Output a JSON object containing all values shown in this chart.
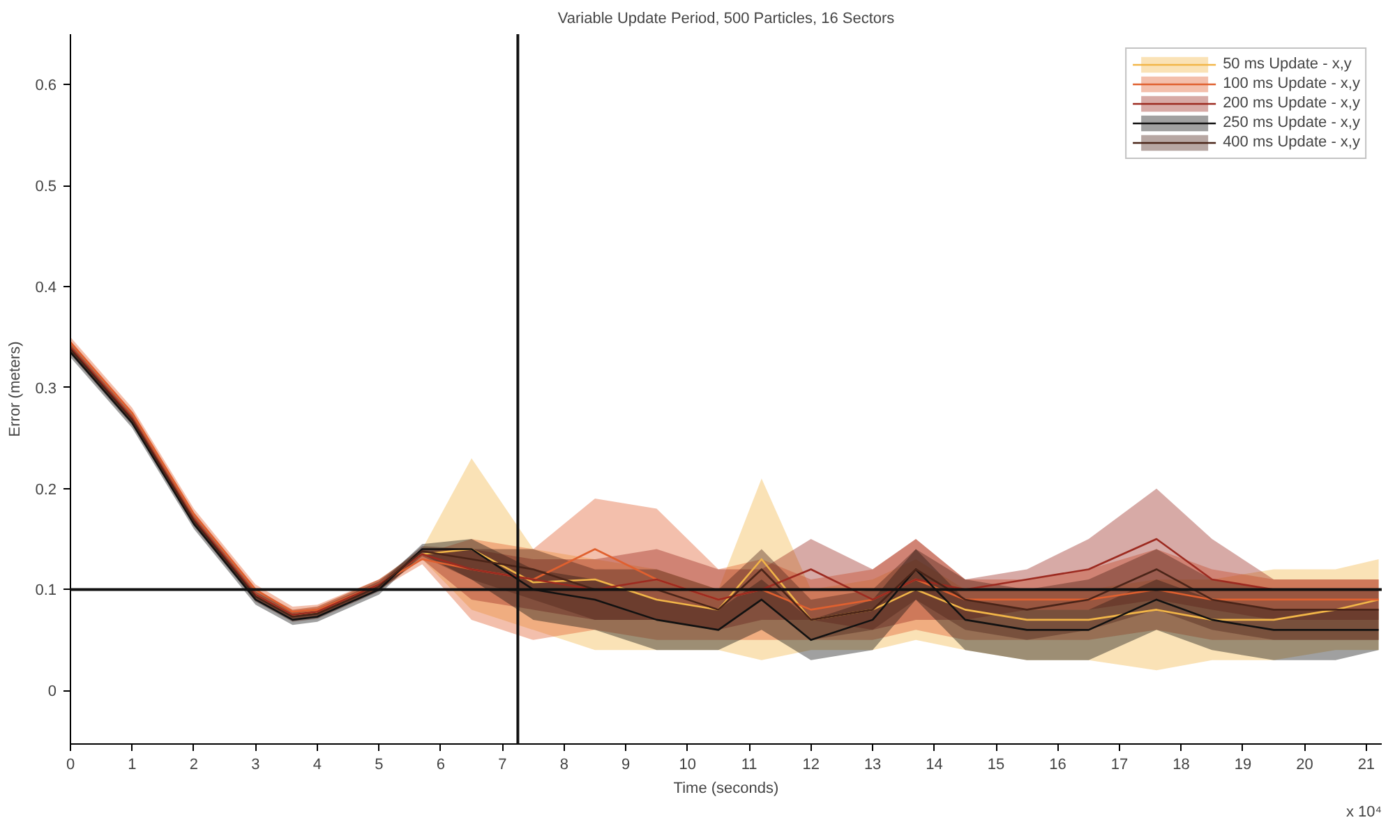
{
  "chart_data": {
    "type": "line",
    "title": "Variable Update Period, 500 Particles, 16 Sectors",
    "xlabel": "Time (seconds)",
    "ylabel": "Error (meters)",
    "x": [
      0,
      1,
      2,
      3,
      3.6,
      4,
      5,
      5.7,
      6.5,
      7.5,
      8.5,
      9.5,
      10.5,
      11.2,
      12,
      13,
      13.7,
      14.5,
      15.5,
      16.5,
      17.6,
      18.5,
      19.5,
      20.5,
      21.2
    ],
    "series": [
      {
        "name": "50 ms Update - x,y",
        "color": "#f2b648",
        "values": [
          0.34,
          0.27,
          0.17,
          0.095,
          0.075,
          0.078,
          0.105,
          0.135,
          0.14,
          0.107,
          0.11,
          0.09,
          0.08,
          0.13,
          0.07,
          0.08,
          0.1,
          0.08,
          0.07,
          0.07,
          0.08,
          0.07,
          0.07,
          0.08,
          0.09
        ],
        "lower": [
          0.335,
          0.265,
          0.165,
          0.09,
          0.07,
          0.073,
          0.1,
          0.13,
          0.08,
          0.06,
          0.04,
          0.04,
          0.04,
          0.03,
          0.04,
          0.04,
          0.05,
          0.04,
          0.03,
          0.03,
          0.02,
          0.03,
          0.03,
          0.04,
          0.04
        ],
        "upper": [
          0.345,
          0.275,
          0.175,
          0.1,
          0.08,
          0.083,
          0.11,
          0.14,
          0.23,
          0.14,
          0.13,
          0.12,
          0.1,
          0.21,
          0.1,
          0.11,
          0.13,
          0.1,
          0.1,
          0.1,
          0.11,
          0.11,
          0.12,
          0.12,
          0.13
        ]
      },
      {
        "name": "100 ms Update - x,y",
        "color": "#e0602f",
        "values": [
          0.345,
          0.275,
          0.175,
          0.1,
          0.078,
          0.08,
          0.105,
          0.13,
          0.12,
          0.11,
          0.14,
          0.11,
          0.09,
          0.1,
          0.08,
          0.09,
          0.11,
          0.09,
          0.09,
          0.09,
          0.1,
          0.09,
          0.09,
          0.09,
          0.09
        ],
        "lower": [
          0.34,
          0.27,
          0.17,
          0.095,
          0.073,
          0.075,
          0.1,
          0.125,
          0.07,
          0.05,
          0.06,
          0.05,
          0.05,
          0.05,
          0.05,
          0.05,
          0.06,
          0.05,
          0.05,
          0.05,
          0.06,
          0.05,
          0.05,
          0.05,
          0.05
        ],
        "upper": [
          0.35,
          0.28,
          0.18,
          0.105,
          0.083,
          0.085,
          0.11,
          0.135,
          0.15,
          0.14,
          0.19,
          0.18,
          0.12,
          0.13,
          0.11,
          0.12,
          0.15,
          0.11,
          0.11,
          0.12,
          0.14,
          0.12,
          0.11,
          0.11,
          0.11
        ]
      },
      {
        "name": "200 ms Update - x,y",
        "color": "#9c2a20",
        "values": [
          0.34,
          0.27,
          0.17,
          0.095,
          0.075,
          0.078,
          0.105,
          0.135,
          0.12,
          0.11,
          0.1,
          0.11,
          0.09,
          0.1,
          0.12,
          0.09,
          0.11,
          0.1,
          0.11,
          0.12,
          0.15,
          0.11,
          0.1,
          0.1,
          0.1
        ],
        "lower": [
          0.335,
          0.265,
          0.165,
          0.09,
          0.07,
          0.073,
          0.1,
          0.13,
          0.09,
          0.08,
          0.07,
          0.07,
          0.06,
          0.07,
          0.07,
          0.06,
          0.07,
          0.07,
          0.08,
          0.08,
          0.09,
          0.08,
          0.07,
          0.07,
          0.07
        ],
        "upper": [
          0.345,
          0.275,
          0.175,
          0.1,
          0.08,
          0.083,
          0.11,
          0.14,
          0.14,
          0.13,
          0.13,
          0.14,
          0.12,
          0.12,
          0.15,
          0.12,
          0.15,
          0.11,
          0.12,
          0.15,
          0.2,
          0.15,
          0.11,
          0.11,
          0.11
        ]
      },
      {
        "name": "250 ms Update - x,y",
        "color": "#111111",
        "values": [
          0.335,
          0.265,
          0.165,
          0.09,
          0.07,
          0.073,
          0.1,
          0.14,
          0.14,
          0.1,
          0.09,
          0.07,
          0.06,
          0.09,
          0.05,
          0.07,
          0.12,
          0.07,
          0.06,
          0.06,
          0.09,
          0.07,
          0.06,
          0.06,
          0.06
        ],
        "lower": [
          0.33,
          0.26,
          0.16,
          0.085,
          0.065,
          0.068,
          0.095,
          0.135,
          0.11,
          0.07,
          0.06,
          0.04,
          0.04,
          0.06,
          0.03,
          0.04,
          0.09,
          0.04,
          0.03,
          0.03,
          0.06,
          0.04,
          0.03,
          0.03,
          0.04
        ],
        "upper": [
          0.34,
          0.27,
          0.17,
          0.095,
          0.075,
          0.078,
          0.105,
          0.145,
          0.15,
          0.12,
          0.11,
          0.09,
          0.08,
          0.11,
          0.07,
          0.09,
          0.14,
          0.09,
          0.08,
          0.08,
          0.11,
          0.09,
          0.08,
          0.08,
          0.08
        ]
      },
      {
        "name": "400 ms Update - x,y",
        "color": "#4a2418",
        "values": [
          0.338,
          0.268,
          0.168,
          0.093,
          0.073,
          0.076,
          0.103,
          0.138,
          0.13,
          0.12,
          0.1,
          0.1,
          0.08,
          0.12,
          0.07,
          0.08,
          0.12,
          0.09,
          0.08,
          0.09,
          0.12,
          0.09,
          0.08,
          0.08,
          0.08
        ],
        "lower": [
          0.333,
          0.263,
          0.163,
          0.088,
          0.068,
          0.071,
          0.098,
          0.133,
          0.11,
          0.09,
          0.07,
          0.07,
          0.06,
          0.09,
          0.05,
          0.06,
          0.09,
          0.06,
          0.05,
          0.06,
          0.08,
          0.06,
          0.05,
          0.05,
          0.05
        ],
        "upper": [
          0.343,
          0.273,
          0.173,
          0.098,
          0.078,
          0.081,
          0.108,
          0.143,
          0.14,
          0.14,
          0.12,
          0.12,
          0.1,
          0.14,
          0.09,
          0.1,
          0.14,
          0.11,
          0.1,
          0.11,
          0.14,
          0.11,
          0.1,
          0.1,
          0.1
        ]
      }
    ],
    "xlim": [
      0,
      21.25
    ],
    "ylim": [
      -0.053,
      0.65
    ],
    "xticks": [
      0,
      1,
      2,
      3,
      4,
      5,
      6,
      7,
      8,
      9,
      10,
      11,
      12,
      13,
      14,
      15,
      16,
      17,
      18,
      19,
      20,
      21
    ],
    "yticks": [
      0,
      0.1,
      0.2,
      0.3,
      0.4,
      0.5,
      0.6
    ],
    "ref_lines": [
      {
        "axis": "x",
        "value": 7.25,
        "color": "#111111"
      },
      {
        "axis": "y",
        "value": 0.1,
        "color": "#111111"
      }
    ],
    "annotations": [
      "x 10⁴"
    ],
    "legend": "top right",
    "grid": false
  }
}
